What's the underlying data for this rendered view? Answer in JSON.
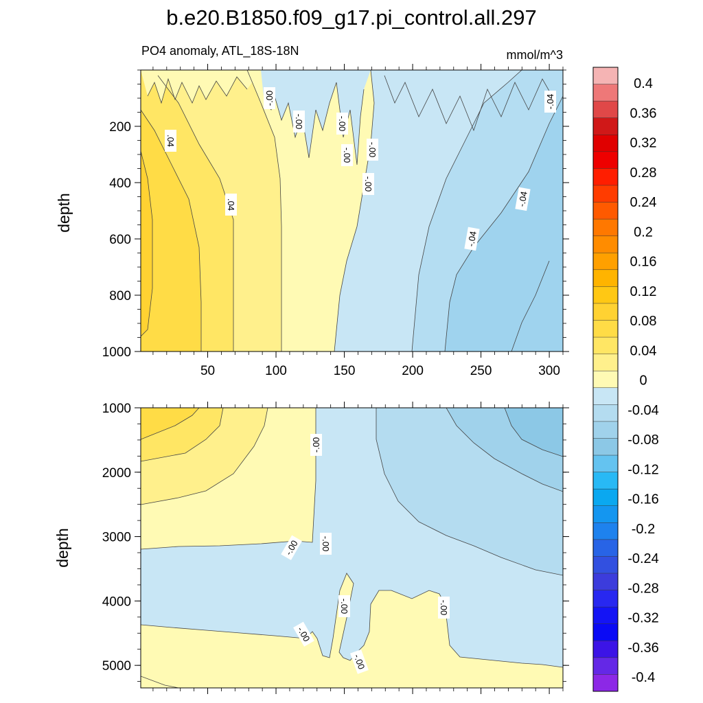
{
  "title": "b.e20.B1850.f09_g17.pi_control.all.297",
  "subtitle": "PO4 anomaly, ATL_18S-18N",
  "units": "mmol/m^3",
  "colorbar": {
    "labels": [
      "0.4",
      "0.36",
      "0.32",
      "0.28",
      "0.24",
      "0.2",
      "0.16",
      "0.12",
      "0.08",
      "0.04",
      "0",
      "-0.04",
      "-0.08",
      "-0.12",
      "-0.16",
      "-0.2",
      "-0.24",
      "-0.28",
      "-0.32",
      "-0.36",
      "-0.4"
    ],
    "colors": [
      "#f5b4b4",
      "#ee7878",
      "#e04848",
      "#d01818",
      "#e00000",
      "#ee0000",
      "#ff1e00",
      "#ff3c00",
      "#ff5a00",
      "#ff7800",
      "#ff8c00",
      "#ffa000",
      "#ffb400",
      "#ffc814",
      "#ffd232",
      "#ffdc46",
      "#ffe664",
      "#fff08c",
      "#fffab4",
      "#c8e6f5",
      "#b4dcf0",
      "#a0d2eb",
      "#8cc8e6",
      "#64c3f0",
      "#28b9f5",
      "#0aa8f0",
      "#1496f0",
      "#1e82ee",
      "#2864e6",
      "#3250e0",
      "#3c3cdc",
      "#2828f0",
      "#1414f5",
      "#0a0af5",
      "#3c14e6",
      "#6428e6",
      "#8c28e6"
    ]
  },
  "chart_data": [
    {
      "type": "heatmap",
      "panel": "upper",
      "xlabel": "",
      "ylabel": "depth",
      "xlim": [
        1,
        310
      ],
      "ylim": [
        1000,
        0
      ],
      "xticks": [
        50,
        100,
        150,
        200,
        250,
        300
      ],
      "yticks": [
        200,
        400,
        600,
        800,
        1000
      ],
      "contour_labels": [
        "-.00",
        "-.00",
        "-.00",
        "-.00",
        "-.00",
        "-.00",
        "-.00",
        "-.04",
        ".04",
        ".04",
        "-.04",
        "-.04"
      ],
      "levels": [
        -0.12,
        -0.08,
        -0.04,
        0,
        0.04,
        0.08
      ],
      "description_values": {
        "west_margin_anomaly": 0.08,
        "center_anomaly": 0.0,
        "east_deep_anomaly": -0.08
      }
    },
    {
      "type": "heatmap",
      "panel": "lower",
      "xlabel": "",
      "ylabel": "depth",
      "xlim": [
        1,
        310
      ],
      "ylim": [
        5350,
        1000
      ],
      "yticks": [
        1000,
        2000,
        3000,
        4000,
        5000
      ],
      "contour_labels": [
        "-.00",
        "-.00",
        "-.00",
        "-.00",
        "-.00",
        "-.00",
        "-.00"
      ],
      "levels": [
        -0.08,
        -0.04,
        0,
        0.04,
        0.08
      ]
    }
  ]
}
